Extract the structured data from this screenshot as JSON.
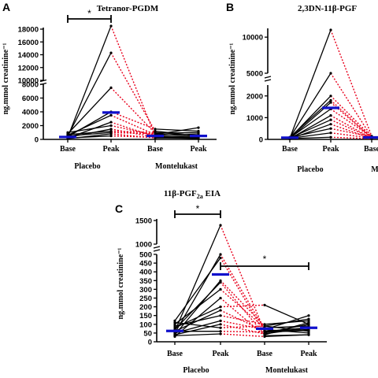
{
  "colors": {
    "placebo_line": "#000000",
    "peak_to_mont_line": "#e8001c",
    "mean_bar": "#1010cc",
    "axis": "#000000"
  },
  "chart_data": [
    {
      "panel": "A",
      "type": "line",
      "title": "Tetranor-PGDM",
      "ylabel": "ng.mmol creatinine⁻¹",
      "categories": [
        "Base",
        "Peak",
        "Base",
        "Peak"
      ],
      "groups": [
        "Placebo",
        "Montelukast"
      ],
      "ylim": [
        0,
        18500
      ],
      "y_break": [
        8000,
        10000
      ],
      "yticks": [
        "0",
        "2000",
        "4000",
        "6000",
        "8000",
        "10000",
        "12000",
        "14000",
        "16000",
        "18000"
      ],
      "significance": [
        {
          "from": 0,
          "to": 1,
          "label": "*"
        }
      ],
      "subjects": [
        [
          300,
          18500,
          500,
          300
        ],
        [
          500,
          14300,
          1200,
          500
        ],
        [
          800,
          7500,
          900,
          1000
        ],
        [
          400,
          4000,
          1500,
          1200
        ],
        [
          600,
          3500,
          700,
          1700
        ],
        [
          200,
          2500,
          400,
          300
        ],
        [
          1000,
          2000,
          600,
          800
        ],
        [
          300,
          1500,
          300,
          300
        ],
        [
          700,
          1200,
          1000,
          600
        ],
        [
          100,
          800,
          200,
          200
        ],
        [
          500,
          1000,
          800,
          400
        ],
        [
          200,
          500,
          300,
          100
        ]
      ],
      "means": [
        350,
        3900,
        500,
        500
      ]
    },
    {
      "panel": "B",
      "type": "line",
      "title": "2,3DN-11β-PGF",
      "ylabel": "ng.mmol creatinine⁻¹",
      "categories": [
        "Base",
        "Peak",
        "Base"
      ],
      "groups": [
        "Placebo",
        "M"
      ],
      "ylim": [
        0,
        11000
      ],
      "y_break": [
        2500,
        5000
      ],
      "yticks": [
        "0",
        "1000",
        "2000",
        "5000",
        "10000"
      ],
      "subjects": [
        [
          50,
          11000,
          150
        ],
        [
          80,
          5000,
          100
        ],
        [
          60,
          2000,
          120
        ],
        [
          100,
          1800,
          80
        ],
        [
          40,
          1700,
          60
        ],
        [
          70,
          1400,
          100
        ],
        [
          30,
          1100,
          50
        ],
        [
          60,
          900,
          70
        ],
        [
          20,
          700,
          40
        ],
        [
          90,
          500,
          110
        ],
        [
          50,
          300,
          60
        ],
        [
          40,
          100,
          30
        ]
      ],
      "means": [
        80,
        1450,
        90
      ]
    },
    {
      "panel": "C",
      "type": "line",
      "title": "11β-PGF",
      "title_sub": "2a",
      "title_suffix": " EIA",
      "ylabel": "ng.mmol creatinine⁻¹",
      "categories": [
        "Base",
        "Peak",
        "Base",
        "Peak"
      ],
      "groups": [
        "Placebo",
        "Montelukast"
      ],
      "ylim": [
        0,
        1400
      ],
      "y_break": [
        500,
        1000
      ],
      "yticks": [
        "0",
        "50",
        "100",
        "150",
        "200",
        "250",
        "300",
        "350",
        "400",
        "450",
        "500",
        "1000",
        "1500"
      ],
      "significance": [
        {
          "from": 0,
          "to": 1,
          "label": "*"
        },
        {
          "from": 1,
          "to": 3,
          "label": "*"
        }
      ],
      "subjects": [
        [
          60,
          1400,
          60,
          80
        ],
        [
          50,
          500,
          70,
          150
        ],
        [
          120,
          480,
          50,
          100
        ],
        [
          40,
          350,
          90,
          60
        ],
        [
          70,
          340,
          40,
          110
        ],
        [
          100,
          300,
          80,
          90
        ],
        [
          30,
          250,
          35,
          40
        ],
        [
          80,
          200,
          210,
          100
        ],
        [
          60,
          180,
          60,
          70
        ],
        [
          90,
          150,
          100,
          120
        ],
        [
          50,
          120,
          70,
          50
        ],
        [
          40,
          100,
          45,
          80
        ],
        [
          110,
          80,
          90,
          130
        ],
        [
          60,
          60,
          55,
          65
        ],
        [
          35,
          45,
          30,
          40
        ]
      ],
      "means": [
        62,
        385,
        75,
        80
      ]
    }
  ]
}
